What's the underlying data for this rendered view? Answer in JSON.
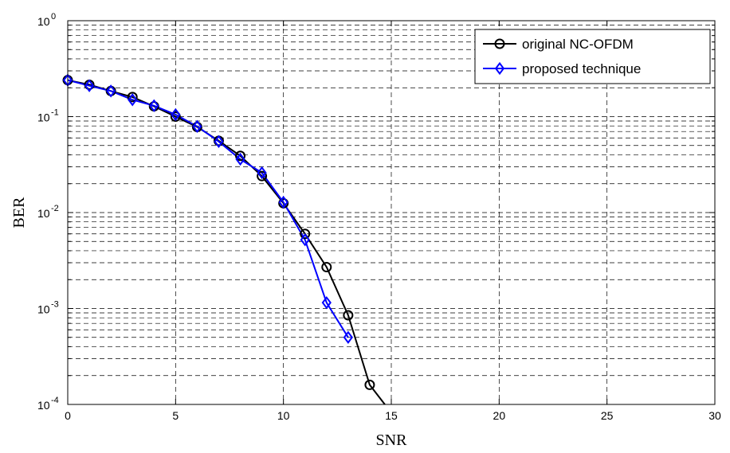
{
  "chart_data": {
    "type": "line",
    "xlabel": "SNR",
    "ylabel": "BER",
    "xlim": [
      0,
      30
    ],
    "ylim": [
      0.0001,
      1
    ],
    "yscale": "log",
    "grid": true,
    "legend_position": "top-right",
    "x_ticks": [
      "0",
      "5",
      "10",
      "15",
      "20",
      "25",
      "30"
    ],
    "y_ticks": [
      {
        "base": "10",
        "exp": "-4"
      },
      {
        "base": "10",
        "exp": "-3"
      },
      {
        "base": "10",
        "exp": "-2"
      },
      {
        "base": "10",
        "exp": "-1"
      },
      {
        "base": "10",
        "exp": "0"
      }
    ],
    "series": [
      {
        "name": "original NC-OFDM",
        "color": "#000000",
        "marker": "circle",
        "x": [
          0,
          1,
          2,
          3,
          4,
          5,
          6,
          7,
          8,
          9,
          10,
          11,
          12,
          13,
          14,
          14.7
        ],
        "y": [
          0.24,
          0.215,
          0.185,
          0.16,
          0.128,
          0.1,
          0.078,
          0.056,
          0.039,
          0.024,
          0.0125,
          0.006,
          0.0027,
          0.00085,
          0.00016,
          0.0001
        ],
        "marker_count": 15
      },
      {
        "name": "proposed technique",
        "color": "#0000ff",
        "marker": "diamond",
        "x": [
          0,
          1,
          2,
          3,
          4,
          5,
          6,
          7,
          8,
          9,
          10,
          11,
          12,
          13
        ],
        "y": [
          0.24,
          0.21,
          0.185,
          0.15,
          0.13,
          0.105,
          0.079,
          0.055,
          0.036,
          0.026,
          0.0128,
          0.0052,
          0.00115,
          0.0005
        ],
        "marker_count": 14
      }
    ]
  }
}
